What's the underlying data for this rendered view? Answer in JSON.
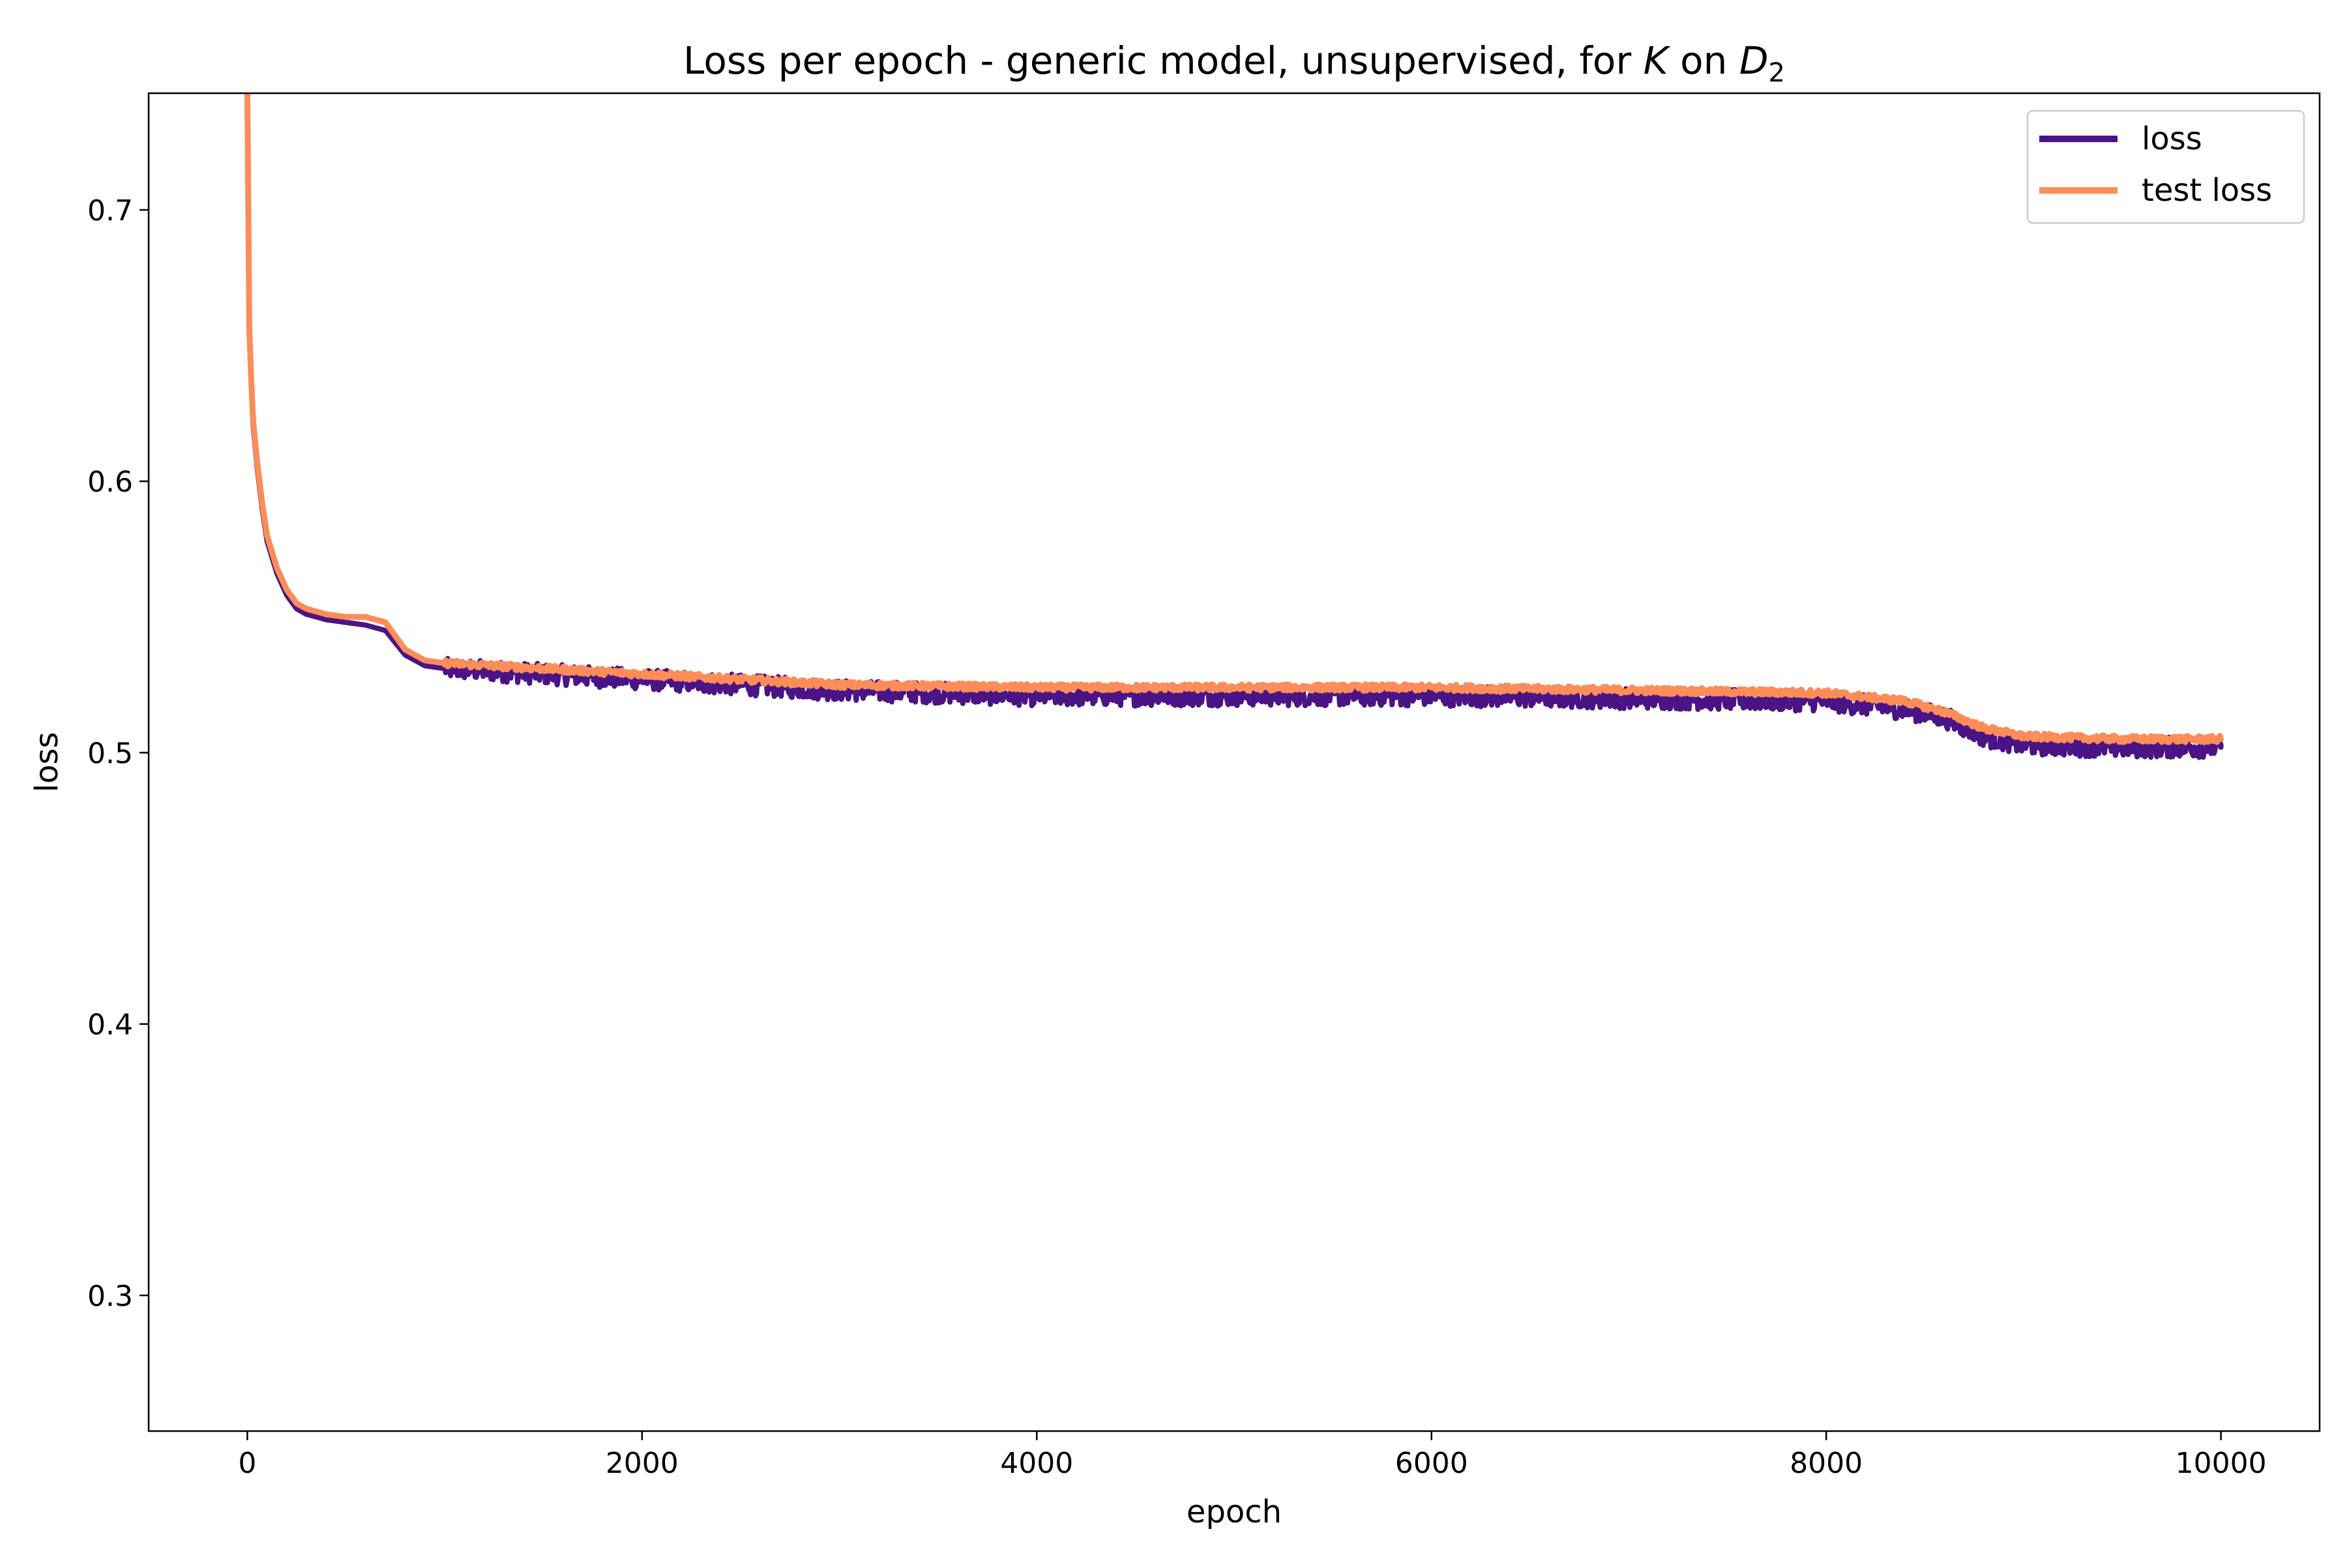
{
  "chart_data": {
    "type": "line",
    "title": {
      "prefix": "Loss per epoch - generic model, unsupervised, for ",
      "var1": "K",
      "middle": " on ",
      "var2": "D",
      "subscript": "2"
    },
    "xlabel": "epoch",
    "ylabel": "loss",
    "xlim": [
      -500,
      10500
    ],
    "ylim": [
      0.25,
      0.743
    ],
    "xticks": [
      0,
      2000,
      4000,
      6000,
      8000,
      10000
    ],
    "xtick_labels": [
      "0",
      "2000",
      "4000",
      "6000",
      "8000",
      "10000"
    ],
    "yticks": [
      0.3,
      0.4,
      0.5,
      0.6,
      0.7
    ],
    "ytick_labels": [
      "0.3",
      "0.4",
      "0.5",
      "0.6",
      "0.7"
    ],
    "grid": false,
    "legend_position": "top-right",
    "series": [
      {
        "name": "loss",
        "color": "#4a1486",
        "noise": 0.0038,
        "x": [
          0,
          5,
          10,
          20,
          30,
          50,
          75,
          100,
          150,
          200,
          250,
          300,
          400,
          500,
          600,
          700,
          800,
          900,
          1000,
          1500,
          2000,
          2500,
          3000,
          4000,
          5000,
          6000,
          7000,
          8000,
          8400,
          8600,
          8800,
          9000,
          9500,
          10000
        ],
        "y": [
          0.745,
          0.7,
          0.655,
          0.635,
          0.62,
          0.605,
          0.59,
          0.578,
          0.566,
          0.558,
          0.553,
          0.551,
          0.549,
          0.548,
          0.547,
          0.545,
          0.536,
          0.532,
          0.531,
          0.529,
          0.527,
          0.525,
          0.523,
          0.521,
          0.521,
          0.521,
          0.52,
          0.519,
          0.516,
          0.513,
          0.506,
          0.503,
          0.502,
          0.502
        ]
      },
      {
        "name": "test loss",
        "color": "#fc8d59",
        "noise": 0.0012,
        "x": [
          0,
          5,
          10,
          20,
          30,
          50,
          75,
          100,
          150,
          200,
          250,
          300,
          400,
          500,
          600,
          700,
          800,
          900,
          1000,
          1500,
          2000,
          2500,
          3000,
          4000,
          5000,
          6000,
          7000,
          8000,
          8400,
          8600,
          8800,
          9000,
          9500,
          10000
        ],
        "y": [
          0.745,
          0.7,
          0.657,
          0.637,
          0.622,
          0.607,
          0.592,
          0.58,
          0.568,
          0.56,
          0.555,
          0.553,
          0.551,
          0.55,
          0.55,
          0.548,
          0.538,
          0.534,
          0.533,
          0.531,
          0.529,
          0.527,
          0.525,
          0.524,
          0.524,
          0.524,
          0.523,
          0.522,
          0.519,
          0.515,
          0.509,
          0.506,
          0.505,
          0.505
        ]
      }
    ]
  }
}
